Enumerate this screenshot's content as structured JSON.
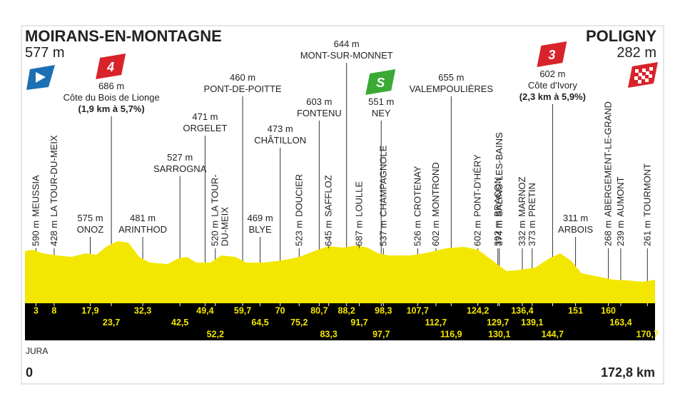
{
  "start": {
    "name": "MOIRANS-EN-MONTAGNE",
    "elevation": "577 m"
  },
  "finish": {
    "name": "POLIGNY",
    "elevation": "282 m"
  },
  "region": "JURA",
  "distance": {
    "start": "0",
    "end": "172,8 km"
  },
  "waypoints": [
    {
      "elevation": "590 m",
      "name": "MEUSSIA",
      "km": "3"
    },
    {
      "elevation": "428 m",
      "name": "LA TOUR-DU-MEIX",
      "km": "8"
    },
    {
      "elevation": "575 m",
      "name": "ONOZ",
      "km": "17,9"
    },
    {
      "category": "4",
      "elevation": "686 m",
      "name": "Côte du Bois de Lionge",
      "climb": "(1,9 km à 5,7%)",
      "km": "23,7"
    },
    {
      "elevation": "481 m",
      "name": "ARINTHOD",
      "km": "32,3"
    },
    {
      "elevation": "527 m",
      "name": "SARROGNA",
      "km": "42,5"
    },
    {
      "elevation": "471 m",
      "name": "ORGELET",
      "km": "49,4"
    },
    {
      "elevation": "520 m",
      "name": "LA TOUR-",
      "name2": "DU-MEIX",
      "km": "52,2"
    },
    {
      "elevation": "460 m",
      "name": "PONT-DE-POITTE",
      "km": "59,7"
    },
    {
      "elevation": "469 m",
      "name": "BLYE",
      "km": "64,5"
    },
    {
      "elevation": "473 m",
      "name": "CHÂTILLON",
      "km": "70"
    },
    {
      "elevation": "523 m",
      "name": "DOUCIER",
      "km": "75,2"
    },
    {
      "elevation": "603 m",
      "name": "FONTENU",
      "km": "80,7"
    },
    {
      "elevation": "645 m",
      "name": "SAFFLOZ",
      "km": "83,3"
    },
    {
      "elevation": "644 m",
      "name": "MONT-SUR-MONNET",
      "km": "88,2"
    },
    {
      "elevation": "687 m",
      "name": "LOULLE",
      "km": "91,7"
    },
    {
      "sprint": "S",
      "elevation": "551 m",
      "name": "NEY",
      "km": "97,7"
    },
    {
      "elevation": "537 m",
      "name": "CHAMPAGNOLE",
      "km": "98,3"
    },
    {
      "elevation": "526 m",
      "name": "CROTENAY",
      "km": "107,7"
    },
    {
      "elevation": "602 m",
      "name": "MONTROND",
      "km": "112,7"
    },
    {
      "elevation": "655 m",
      "name": "VALEMPOULIÈRES",
      "km": "116,9"
    },
    {
      "elevation": "602 m",
      "name": "PONT-D'HÉRY",
      "km": "124,2"
    },
    {
      "elevation": "392 m",
      "name": "BRACON",
      "km": "129,7"
    },
    {
      "elevation": "374 m",
      "name": "SALINS-LES-BAINS",
      "km": "130,1"
    },
    {
      "elevation": "332 m",
      "name": "MARNOZ",
      "km": "136,4"
    },
    {
      "elevation": "373 m",
      "name": "PRETIN",
      "km": "139,1"
    },
    {
      "category": "3",
      "elevation": "602 m",
      "name": "Côte d'Ivory",
      "climb": "(2,3 km à 5,9%)",
      "km": "144,7"
    },
    {
      "elevation": "311 m",
      "name": "ARBOIS",
      "km": "151"
    },
    {
      "elevation": "268 m",
      "name": "ABERGEMENT-LE-GRAND",
      "km": "160"
    },
    {
      "elevation": "239 m",
      "name": "AUMONT",
      "km": "163,4"
    },
    {
      "elevation": "261 m",
      "name": "TOURMONT",
      "km": "170,7"
    }
  ]
}
